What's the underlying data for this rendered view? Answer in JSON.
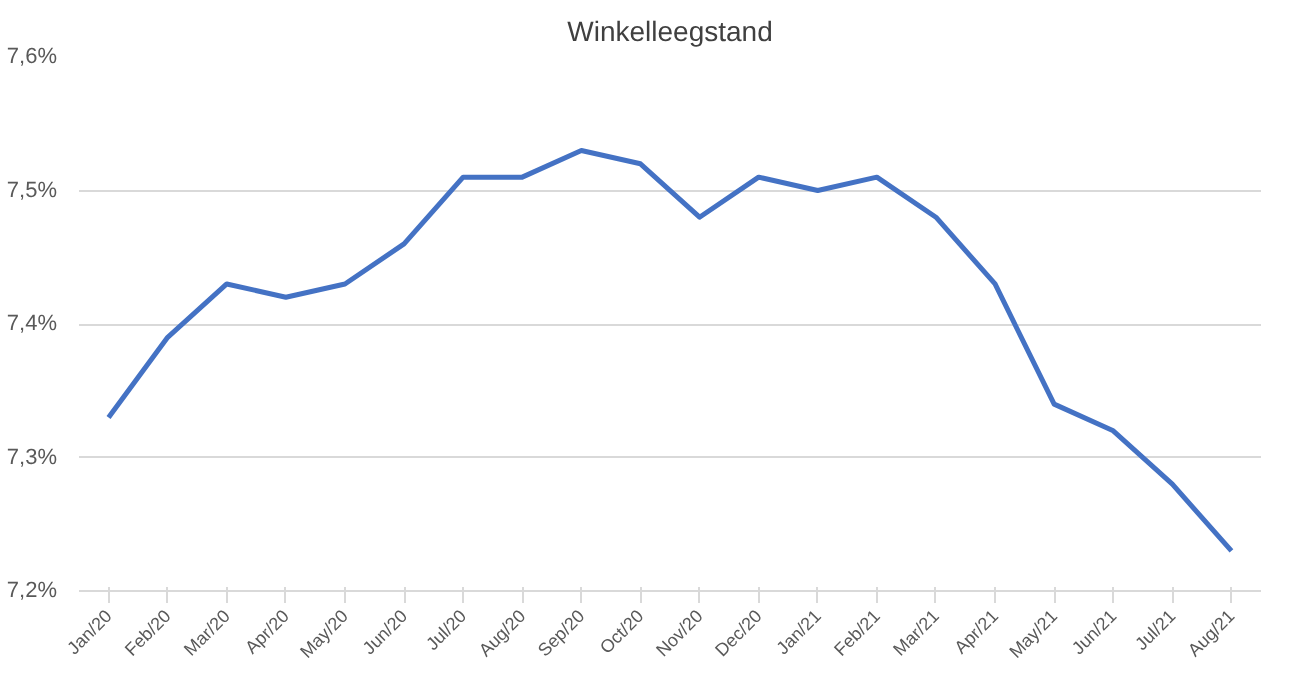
{
  "chart_data": {
    "type": "line",
    "title": "Winkelleegstand",
    "categories": [
      "Jan/20",
      "Feb/20",
      "Mar/20",
      "Apr/20",
      "May/20",
      "Jun/20",
      "Jul/20",
      "Aug/20",
      "Sep/20",
      "Oct/20",
      "Nov/20",
      "Dec/20",
      "Jan/21",
      "Feb/21",
      "Mar/21",
      "Apr/21",
      "May/21",
      "Jun/21",
      "Jul/21",
      "Aug/21"
    ],
    "series": [
      {
        "color": "#4472c4",
        "values": [
          7.33,
          7.39,
          7.43,
          7.42,
          7.43,
          7.46,
          7.51,
          7.51,
          7.53,
          7.52,
          7.48,
          7.51,
          7.5,
          7.51,
          7.48,
          7.43,
          7.34,
          7.32,
          7.28,
          7.23
        ]
      }
    ],
    "ylim": [
      7.2,
      7.6
    ],
    "yticks": [
      {
        "value": 7.2,
        "label": "7,2%"
      },
      {
        "value": 7.3,
        "label": "7,3%"
      },
      {
        "value": 7.4,
        "label": "7,4%"
      },
      {
        "value": 7.5,
        "label": "7,5%"
      },
      {
        "value": 7.6,
        "label": "7,6%"
      }
    ],
    "grid": "y",
    "marker": "none",
    "line_style": "solid"
  }
}
